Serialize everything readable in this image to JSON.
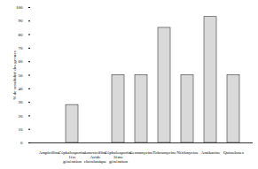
{
  "chart_data": {
    "type": "bar",
    "y_label": "% de sensibilité des germes",
    "categories": [
      "Ampicilline",
      "Céphalosporine 1ère génération",
      "Amoxicilline Acide clavulanique",
      "Céphalosporine 3ème génération",
      "Gentamycine",
      "Tobramycine",
      "Nétilmycine",
      "Amikacine",
      "Quinolones"
    ],
    "values": [
      0,
      28,
      0,
      50,
      50,
      85,
      50,
      93,
      50
    ],
    "color": "#d9d9d9",
    "ylim": [
      0,
      100
    ],
    "yticks": [
      0,
      10,
      20,
      30,
      40,
      50,
      60,
      70,
      80,
      90,
      100
    ],
    "grid": false
  }
}
